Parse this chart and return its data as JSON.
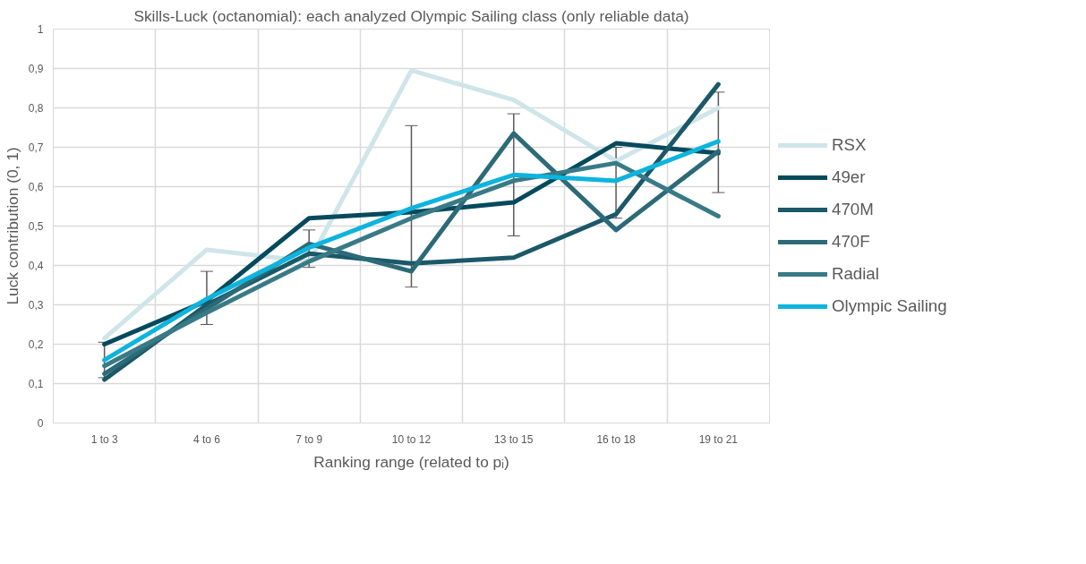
{
  "chart_data": {
    "type": "line",
    "title": "Skills-Luck (octanomial): each analyzed Olympic Sailing class (only reliable data)",
    "xlabel": "Ranking range (related to pᵢ)",
    "ylabel": "Luck contribution (0, 1)",
    "categories": [
      "1 to 3",
      "4 to 6",
      "7 to 9",
      "10 to 12",
      "13 to 15",
      "16 to 18",
      "19 to 21"
    ],
    "series": [
      {
        "name": "RSX",
        "color": "#cfe5ea",
        "values": [
          0.215,
          0.44,
          0.41,
          0.895,
          0.82,
          0.665,
          0.8
        ]
      },
      {
        "name": "49er",
        "color": "#044a5c",
        "values": [
          0.2,
          0.31,
          0.52,
          0.535,
          0.56,
          0.71,
          0.685
        ]
      },
      {
        "name": "470M",
        "color": "#1b5868",
        "values": [
          0.11,
          0.3,
          0.43,
          0.405,
          0.42,
          0.53,
          0.86
        ]
      },
      {
        "name": "470F",
        "color": "#2c6a77",
        "values": [
          0.125,
          0.29,
          0.455,
          0.385,
          0.735,
          0.49,
          0.69
        ]
      },
      {
        "name": "Radial",
        "color": "#397a87",
        "values": [
          0.145,
          0.28,
          0.41,
          0.52,
          0.615,
          0.66,
          0.525
        ]
      },
      {
        "name": "Olympic Sailing",
        "color": "#0db4dd",
        "values": [
          0.16,
          0.315,
          0.445,
          0.545,
          0.63,
          0.615,
          0.715
        ],
        "errors": [
          [
            0.115,
            0.205
          ],
          [
            0.25,
            0.385
          ],
          [
            0.395,
            0.49
          ],
          [
            0.345,
            0.755
          ],
          [
            0.475,
            0.785
          ],
          [
            0.52,
            0.7
          ],
          [
            0.585,
            0.84
          ]
        ]
      }
    ],
    "ylim": [
      0,
      1
    ],
    "yticks": [
      0,
      {
        "value": 0.1,
        "label": "0,1"
      },
      {
        "value": 0.2,
        "label": "0,2"
      },
      {
        "value": 0.3,
        "label": "0,3"
      },
      {
        "value": 0.4,
        "label": "0,4"
      },
      {
        "value": 0.5,
        "label": "0,5"
      },
      {
        "value": 0.6,
        "label": "0,6"
      },
      {
        "value": 0.7,
        "label": "0,7"
      },
      {
        "value": 0.8,
        "label": "0,8"
      },
      {
        "value": 0.9,
        "label": "0,9"
      },
      1
    ],
    "grid": true,
    "legend": "right",
    "marker": "none",
    "line_style": "solid"
  }
}
